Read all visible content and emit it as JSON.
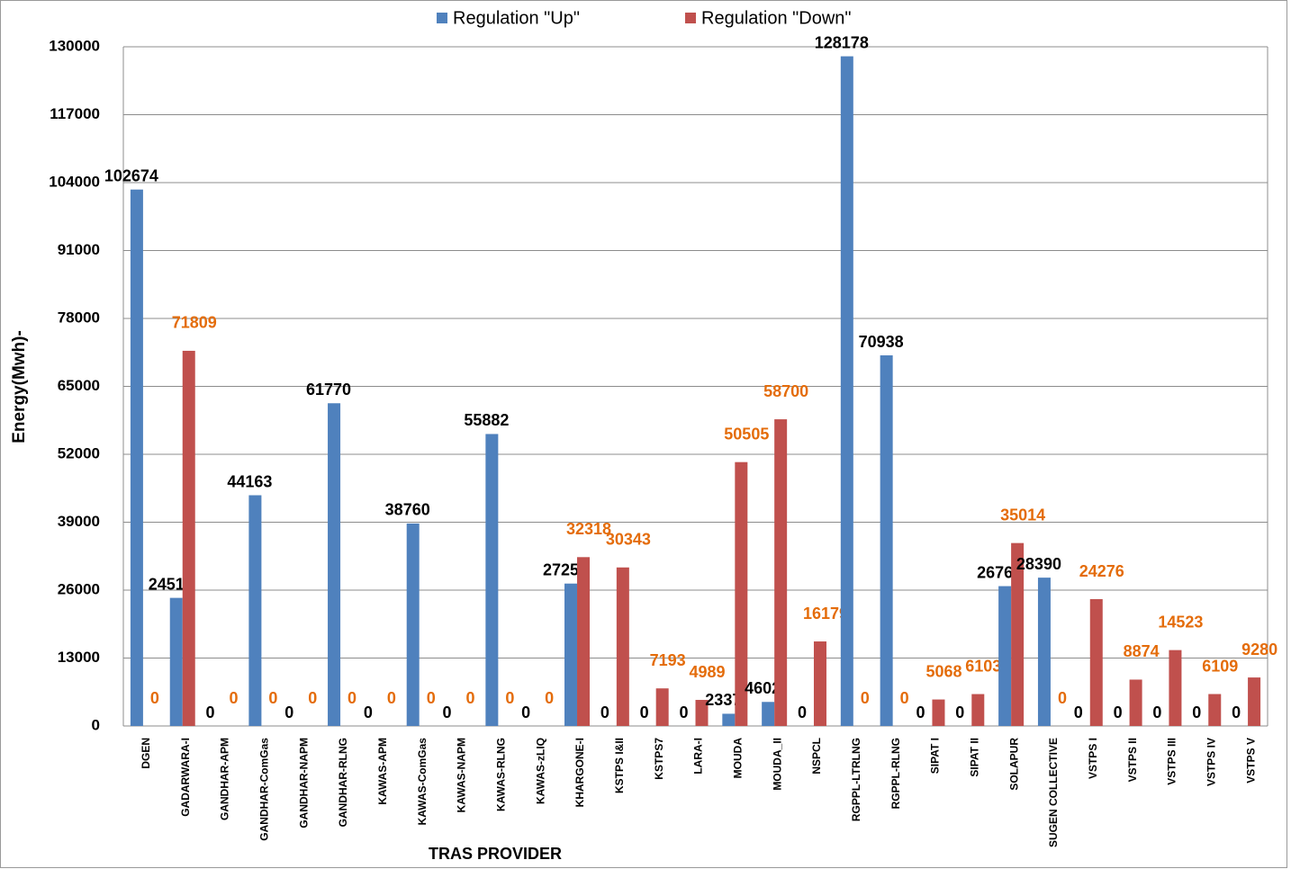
{
  "chart_data": {
    "type": "bar",
    "categories": [
      "DGEN",
      "GADARWARA-I",
      "GANDHAR-APM",
      "GANDHAR-ComGas",
      "GANDHAR-NAPM",
      "GANDHAR-RLNG",
      "KAWAS-APM",
      "KAWAS-ComGas",
      "KAWAS-NAPM",
      "KAWAS-RLNG",
      "KAWAS-zLIQ",
      "KHARGONE-I",
      "KSTPS I&II",
      "KSTPS7",
      "LARA-I",
      "MOUDA",
      "MOUDA_II",
      "NSPCL",
      "RGPPL-LTRLNG",
      "RGPPL-RLNG",
      "SIPAT I",
      "SIPAT II",
      "SOLAPUR",
      "SUGEN COLLECTIVE",
      "VSTPS I",
      "VSTPS II",
      "VSTPS III",
      "VSTPS IV",
      "VSTPS V"
    ],
    "series": [
      {
        "name": "Regulation \"Up\"",
        "color": "#4f81bd",
        "label_color": "#000000",
        "values": [
          102674,
          24518,
          0,
          44163,
          0,
          61770,
          0,
          38760,
          0,
          55882,
          0,
          27255,
          0,
          0,
          0,
          2337,
          4602,
          0,
          128178,
          70938,
          0,
          0,
          26764,
          28390,
          0,
          0,
          0,
          0,
          0
        ]
      },
      {
        "name": "Regulation \"Down\"",
        "color": "#c0504d",
        "label_color": "#e46c0a",
        "values": [
          0,
          71809,
          0,
          0,
          0,
          0,
          0,
          0,
          0,
          0,
          0,
          32318,
          30343,
          7193,
          4989,
          50505,
          58700,
          16179,
          0,
          0,
          5068,
          6103,
          35014,
          0,
          24276,
          8874,
          14523,
          6109,
          9280
        ]
      }
    ],
    "ylabel": "Energy(Mwh)-",
    "xlabel": "TRAS PROVIDER",
    "ylim": [
      0,
      130000
    ],
    "yticks": [
      0,
      13000,
      26000,
      39000,
      52000,
      65000,
      78000,
      91000,
      104000,
      117000,
      130000
    ],
    "grid": true,
    "legend": "top"
  }
}
